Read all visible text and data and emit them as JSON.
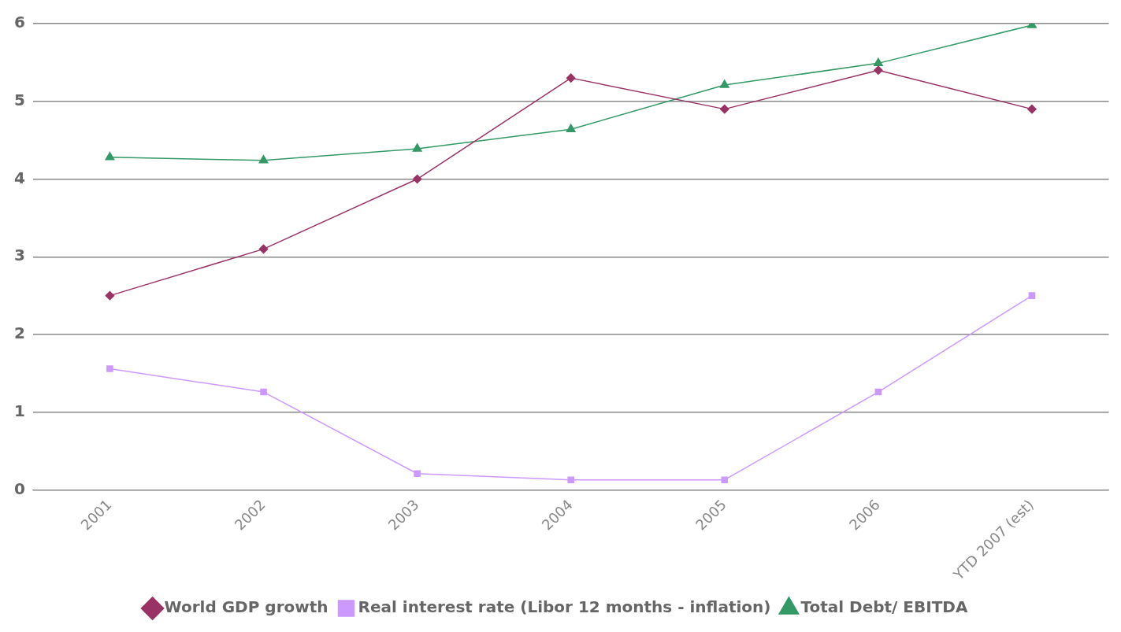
{
  "chart_data": {
    "type": "line",
    "categories": [
      "2001",
      "2002",
      "2003",
      "2004",
      "2005",
      "2006",
      "YTD 2007 (est)"
    ],
    "series": [
      {
        "name": "World GDP growth",
        "color": "#993366",
        "marker": "diamond",
        "values": [
          2.5,
          3.1,
          4.0,
          5.3,
          4.9,
          5.4,
          4.9
        ]
      },
      {
        "name": "Real interest rate (Libor 12 months - inflation)",
        "color": "#cc99ff",
        "marker": "square",
        "values": [
          1.56,
          1.26,
          0.21,
          0.13,
          0.13,
          1.26,
          2.5
        ]
      },
      {
        "name": "Total Debt/ EBITDA",
        "color": "#339966",
        "marker": "triangle",
        "values": [
          4.28,
          4.24,
          4.39,
          4.64,
          5.21,
          5.49,
          5.98
        ]
      }
    ],
    "ylim": [
      0,
      6
    ],
    "yticks": [
      0,
      1,
      2,
      3,
      4,
      5,
      6
    ],
    "grid": "y",
    "legend": "bottom",
    "line_style": "solid"
  }
}
